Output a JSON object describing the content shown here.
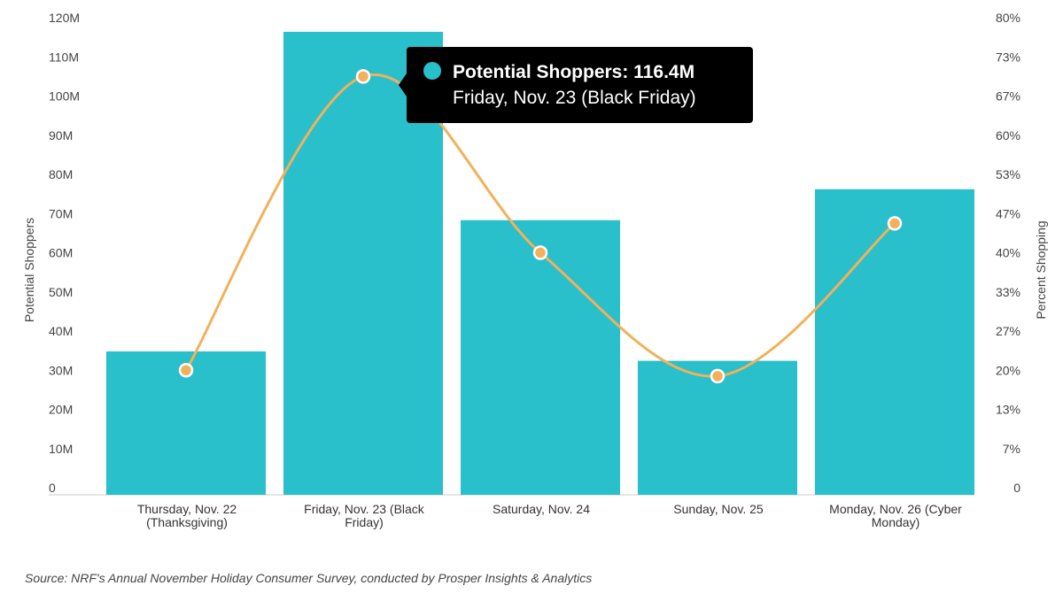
{
  "chart_data": {
    "type": "bar",
    "categories": [
      [
        "Thursday, Nov. 22",
        "(Thanksgiving)"
      ],
      [
        "Friday, Nov. 23 (Black",
        "Friday)"
      ],
      [
        "Saturday, Nov. 24"
      ],
      [
        "Sunday, Nov. 25"
      ],
      [
        "Monday, Nov. 26 (Cyber",
        "Monday)"
      ]
    ],
    "series": [
      {
        "name": "Potential Shoppers",
        "type": "bar",
        "axis": "left",
        "color": "#29BFCB",
        "values": [
          34.8,
          116.4,
          68.3,
          32.4,
          76.2
        ]
      },
      {
        "type": "line",
        "axis": "right",
        "smooth": true,
        "color": "#F2B15A",
        "values": [
          20,
          70,
          40,
          19,
          45
        ]
      }
    ],
    "ylabel": "Potential Shoppers",
    "y2label": "Percent Shopping",
    "ylim": [
      0,
      120
    ],
    "y2lim": [
      0,
      80
    ],
    "yticks": [
      "0",
      "10M",
      "20M",
      "30M",
      "40M",
      "50M",
      "60M",
      "70M",
      "80M",
      "90M",
      "100M",
      "110M",
      "120M"
    ],
    "y2ticks": [
      "0",
      "7%",
      "13%",
      "20%",
      "27%",
      "33%",
      "40%",
      "47%",
      "53%",
      "60%",
      "67%",
      "73%",
      "80%"
    ],
    "grid": false,
    "tooltip": {
      "category_index": 1,
      "title": "Potential Shoppers: 116.4M",
      "subtitle": "Friday, Nov. 23 (Black Friday)"
    }
  },
  "source": "Source:  NRF's Annual November Holiday Consumer Survey, conducted by Prosper Insights & Analytics"
}
